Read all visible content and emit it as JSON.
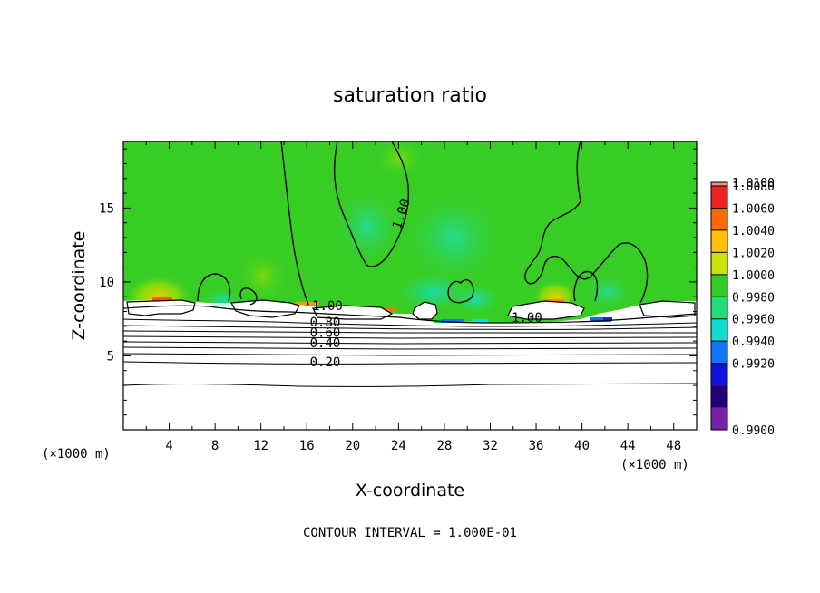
{
  "chart_data": {
    "type": "heatmap",
    "title": "saturation ratio",
    "xlabel": "X-coordinate",
    "ylabel": "Z-coordinate",
    "x_units": "(×1000 m)",
    "z_units": "(×1000 m)",
    "xlim": [
      0,
      50
    ],
    "ylim": [
      0,
      19.5
    ],
    "x_ticks": [
      4,
      8,
      12,
      16,
      20,
      24,
      28,
      32,
      36,
      40,
      44,
      48
    ],
    "y_ticks": [
      5,
      10,
      15
    ],
    "grid": false,
    "colorbar": {
      "placement": "right",
      "levels": [
        "1.0100",
        "1.0080",
        "1.0060",
        "1.0040",
        "1.0020",
        "1.0000",
        "0.9980",
        "0.9960",
        "0.9940",
        "0.9920",
        "0.9900"
      ],
      "colors": [
        "#f08a8a",
        "#ee2222",
        "#ff6a00",
        "#ffc000",
        "#c6e600",
        "#33cc22",
        "#22dd77",
        "#11ddcc",
        "#1177ff",
        "#1111dd",
        "#220077",
        "#7722aa"
      ]
    },
    "contour_labels": [
      {
        "text": "1.00",
        "x": 17.8,
        "y": 8.4
      },
      {
        "text": "1.00",
        "x": 24.2,
        "y": 14.6
      },
      {
        "text": "1.00",
        "x": 35.2,
        "y": 7.6
      },
      {
        "text": "0.80",
        "x": 17.6,
        "y": 7.3
      },
      {
        "text": "0.60",
        "x": 17.6,
        "y": 6.6
      },
      {
        "text": "0.40",
        "x": 17.6,
        "y": 5.9
      },
      {
        "text": "0.20",
        "x": 17.6,
        "y": 4.6
      }
    ],
    "contour_interval": "1.000E-01"
  },
  "footer": "CONTOUR INTERVAL = 1.000E-01"
}
